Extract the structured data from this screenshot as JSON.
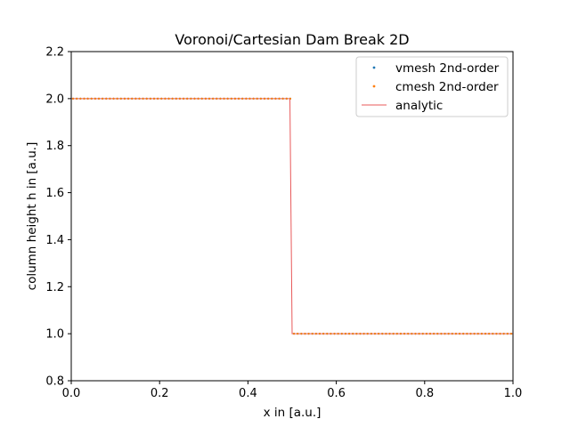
{
  "chart_data": {
    "type": "line",
    "title": "Voronoi/Cartesian Dam Break 2D",
    "xlabel": "x in [a.u.]",
    "ylabel": "column height h in [a.u.]",
    "xlim": [
      0.0,
      1.0
    ],
    "ylim": [
      0.8,
      2.2
    ],
    "xticks": [
      "0.0",
      "0.2",
      "0.4",
      "0.6",
      "0.8",
      "1.0"
    ],
    "yticks": [
      "0.8",
      "1.0",
      "1.2",
      "1.4",
      "1.6",
      "1.8",
      "2.0",
      "2.2"
    ],
    "grid": false,
    "legend_position": "top-right",
    "series": [
      {
        "name": "vmesh 2nd-order",
        "kind": "scatter",
        "color": "#1f77b4",
        "segments": [
          {
            "x_start": 0.0,
            "x_end": 0.5,
            "y": 2.0
          },
          {
            "x_start": 0.5,
            "x_end": 1.0,
            "y": 1.0
          }
        ]
      },
      {
        "name": "cmesh 2nd-order",
        "kind": "scatter",
        "color": "#ff7f0e",
        "segments": [
          {
            "x_start": 0.0,
            "x_end": 0.5,
            "y": 2.0
          },
          {
            "x_start": 0.5,
            "x_end": 1.0,
            "y": 1.0
          }
        ]
      },
      {
        "name": "analytic",
        "kind": "line",
        "color": "#e8595a",
        "points": [
          [
            0.0,
            2.0
          ],
          [
            0.495,
            2.0
          ],
          [
            0.5,
            1.0
          ],
          [
            1.0,
            1.0
          ]
        ]
      }
    ]
  }
}
